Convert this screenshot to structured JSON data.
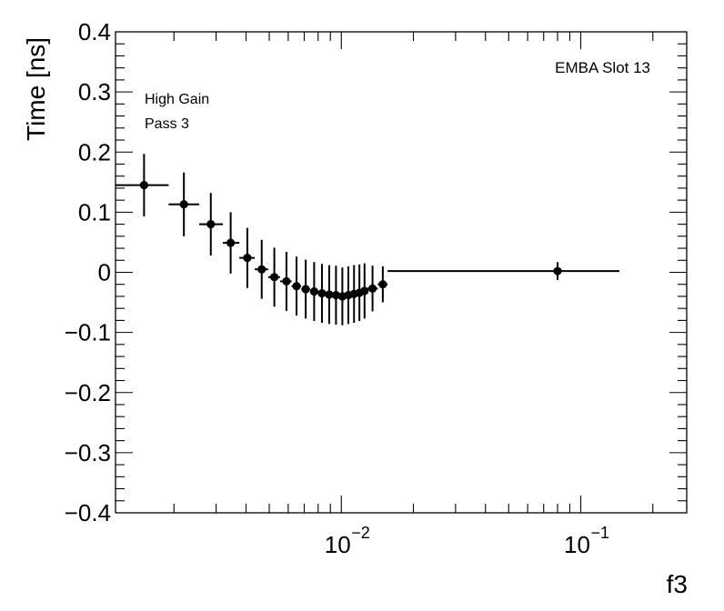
{
  "chart_data": {
    "type": "scatter",
    "title": "",
    "xlabel": "f3",
    "ylabel": "Time [ns]",
    "xscale": "log",
    "xlim": [
      0.00114,
      0.277
    ],
    "ylim": [
      -0.4,
      0.4
    ],
    "yticks": [
      {
        "value": 0.4,
        "label": "0.4"
      },
      {
        "value": 0.3,
        "label": "0.3"
      },
      {
        "value": 0.2,
        "label": "0.2"
      },
      {
        "value": 0.1,
        "label": "0.1"
      },
      {
        "value": 0.0,
        "label": "0"
      },
      {
        "value": -0.1,
        "label": "−0.1"
      },
      {
        "value": -0.2,
        "label": "−0.2"
      },
      {
        "value": -0.3,
        "label": "−0.3"
      },
      {
        "value": -0.4,
        "label": "−0.4"
      }
    ],
    "xticks": [
      {
        "value": 0.01,
        "base": "10",
        "exp": "−2"
      },
      {
        "value": 0.1,
        "base": "10",
        "exp": "−1"
      }
    ],
    "annotations": {
      "module": "EMBA Slot 13",
      "gain": "High Gain",
      "pass": "Pass 3"
    },
    "grid": false,
    "legend": "none",
    "marker_color": "#000000",
    "points": [
      {
        "x": 0.0015,
        "xlo": 0.00114,
        "xhi": 0.0019,
        "y": 0.145,
        "ey": 0.052
      },
      {
        "x": 0.0022,
        "xlo": 0.0019,
        "xhi": 0.00255,
        "y": 0.113,
        "ey": 0.053
      },
      {
        "x": 0.00285,
        "xlo": 0.00255,
        "xhi": 0.0032,
        "y": 0.08,
        "ey": 0.052
      },
      {
        "x": 0.00345,
        "xlo": 0.0032,
        "xhi": 0.00375,
        "y": 0.049,
        "ey": 0.051
      },
      {
        "x": 0.00405,
        "xlo": 0.00375,
        "xhi": 0.00435,
        "y": 0.024,
        "ey": 0.05
      },
      {
        "x": 0.00465,
        "xlo": 0.00435,
        "xhi": 0.00495,
        "y": 0.005,
        "ey": 0.049
      },
      {
        "x": 0.00525,
        "xlo": 0.00495,
        "xhi": 0.00555,
        "y": -0.008,
        "ey": 0.049
      },
      {
        "x": 0.0059,
        "xlo": 0.00555,
        "xhi": 0.0062,
        "y": -0.015,
        "ey": 0.049
      },
      {
        "x": 0.0065,
        "xlo": 0.0062,
        "xhi": 0.0068,
        "y": -0.023,
        "ey": 0.049
      },
      {
        "x": 0.0071,
        "xlo": 0.0068,
        "xhi": 0.0074,
        "y": -0.028,
        "ey": 0.049
      },
      {
        "x": 0.0077,
        "xlo": 0.0074,
        "xhi": 0.008,
        "y": -0.032,
        "ey": 0.049
      },
      {
        "x": 0.0083,
        "xlo": 0.008,
        "xhi": 0.0086,
        "y": -0.035,
        "ey": 0.049
      },
      {
        "x": 0.0089,
        "xlo": 0.0086,
        "xhi": 0.0092,
        "y": -0.037,
        "ey": 0.049
      },
      {
        "x": 0.0095,
        "xlo": 0.0092,
        "xhi": 0.0098,
        "y": -0.038,
        "ey": 0.049
      },
      {
        "x": 0.0101,
        "xlo": 0.0098,
        "xhi": 0.0104,
        "y": -0.04,
        "ey": 0.048
      },
      {
        "x": 0.0107,
        "xlo": 0.0104,
        "xhi": 0.011,
        "y": -0.038,
        "ey": 0.048
      },
      {
        "x": 0.0113,
        "xlo": 0.011,
        "xhi": 0.0116,
        "y": -0.036,
        "ey": 0.048
      },
      {
        "x": 0.0119,
        "xlo": 0.0116,
        "xhi": 0.0122,
        "y": -0.034,
        "ey": 0.047
      },
      {
        "x": 0.0125,
        "xlo": 0.0122,
        "xhi": 0.01285,
        "y": -0.031,
        "ey": 0.046
      },
      {
        "x": 0.0135,
        "xlo": 0.01285,
        "xhi": 0.0142,
        "y": -0.027,
        "ey": 0.038
      },
      {
        "x": 0.0149,
        "xlo": 0.0142,
        "xhi": 0.0156,
        "y": -0.02,
        "ey": 0.03
      },
      {
        "x": 0.08,
        "xlo": 0.0156,
        "xhi": 0.145,
        "y": 0.002,
        "ey": 0.015
      }
    ]
  }
}
